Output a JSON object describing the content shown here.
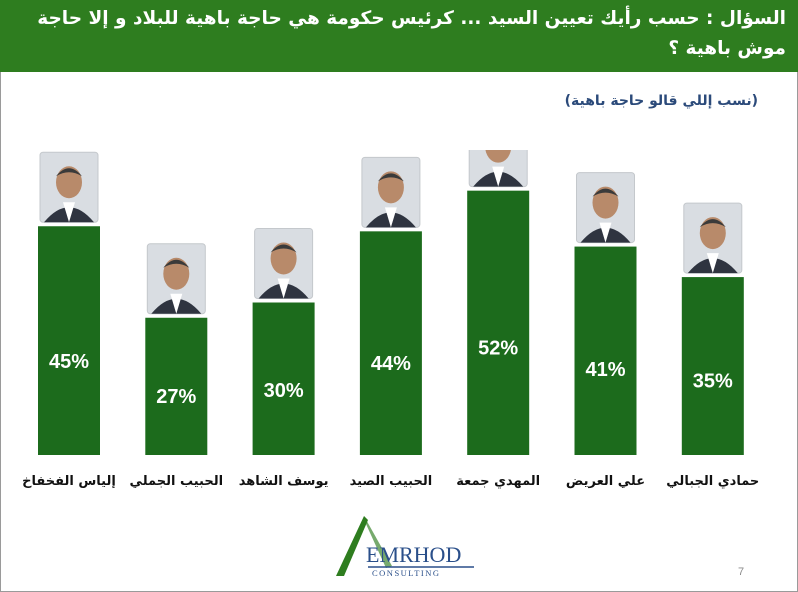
{
  "header": {
    "question": "السؤال : حسب رأيك تعيين السيد ... كرئيس حكومة هي حاجة باهية للبلاد و إلا حاجة موش باهية ؟"
  },
  "subtitle": "(نسب إللي قالو حاجة باهية)",
  "logo": {
    "name": "EMRHOD",
    "tagline": "CONSULTING"
  },
  "page_number": "7",
  "colors": {
    "header_bg": "#2e7d1f",
    "bar": "#1c6b1c",
    "bar_label": "#ffffff",
    "subtitle": "#2b4a7a",
    "logo_text": "#2a4f8a",
    "logo_mark": "#2e7d1f"
  },
  "chart_data": {
    "type": "bar",
    "categories": [
      "إلياس الفخفاخ",
      "الحبيب الجملي",
      "يوسف الشاهد",
      "الحبيب الصيد",
      "المهدي جمعة",
      "علي العريض",
      "حمادي الجبالي"
    ],
    "values": [
      45,
      27,
      30,
      44,
      52,
      41,
      35
    ],
    "value_labels": [
      "45%",
      "27%",
      "30%",
      "44%",
      "52%",
      "41%",
      "35%"
    ],
    "unit": "%",
    "ylim": [
      0,
      60
    ],
    "title": "",
    "xlabel": "",
    "ylabel": "",
    "grid": false,
    "legend": "none",
    "portrait_icons": [
      "person-portrait-icon",
      "person-portrait-icon",
      "person-portrait-icon",
      "person-portrait-icon",
      "person-portrait-icon",
      "person-portrait-icon",
      "person-portrait-icon"
    ]
  }
}
